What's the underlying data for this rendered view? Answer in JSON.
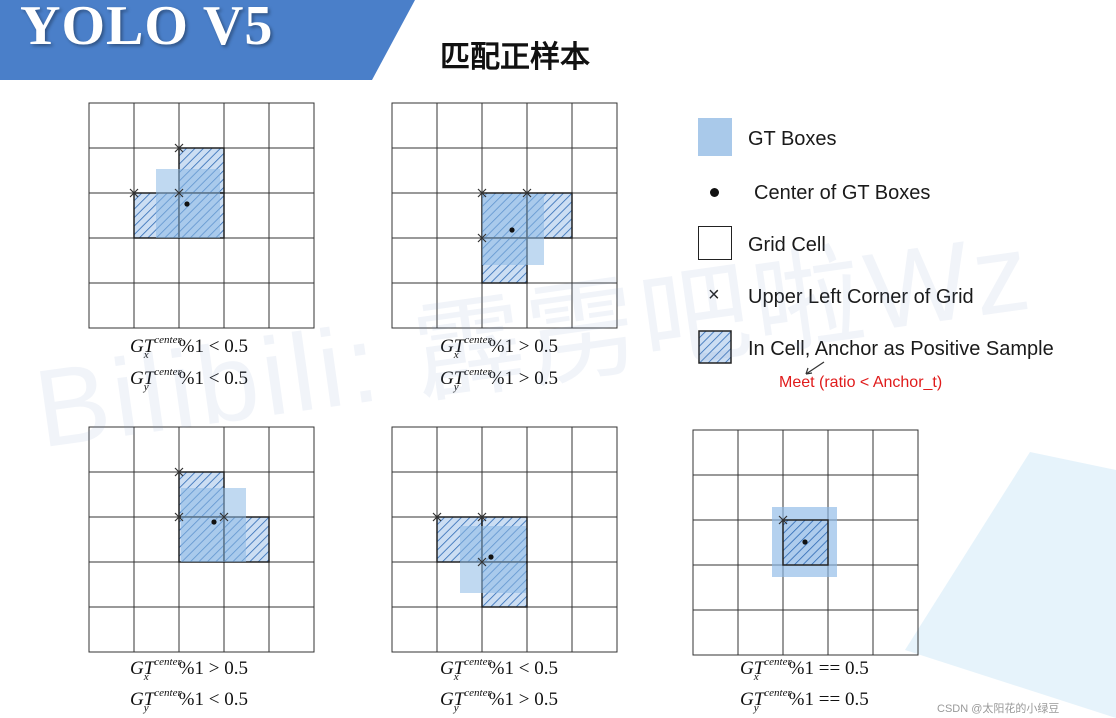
{
  "header": {
    "title": "YOLO V5",
    "subtitle": "匹配正样本",
    "banner_color": "#4a7fc9"
  },
  "colors": {
    "gt_box": "#a9c9ea",
    "hatch": "#2f6bb5",
    "grid": "#333333",
    "note": "#e01b1b"
  },
  "legend": {
    "gt_boxes": "GT Boxes",
    "center": "Center of GT Boxes",
    "grid_cell": "Grid Cell",
    "upper_left": "Upper Left Corner of Grid",
    "positive": "In Cell, Anchor as Positive Sample",
    "note": "Meet (ratio < Anchor_t)"
  },
  "panels": [
    {
      "x_op": "<",
      "x_val": "0.5",
      "y_op": "<",
      "y_val": "0.5"
    },
    {
      "x_op": ">",
      "x_val": "0.5",
      "y_op": ">",
      "y_val": "0.5"
    },
    {
      "x_op": ">",
      "x_val": "0.5",
      "y_op": "<",
      "y_val": "0.5"
    },
    {
      "x_op": "<",
      "x_val": "0.5",
      "y_op": ">",
      "y_val": "0.5"
    },
    {
      "x_op": "==",
      "x_val": "0.5",
      "y_op": "==",
      "y_val": "0.5"
    }
  ],
  "formula": {
    "gt": "GT",
    "sup": "center",
    "x": "x",
    "y": "y",
    "mod": "%1"
  },
  "watermark": "Bilibili: 霹雳吧啦Wz",
  "credit": "CSDN @太阳花的小绿豆"
}
